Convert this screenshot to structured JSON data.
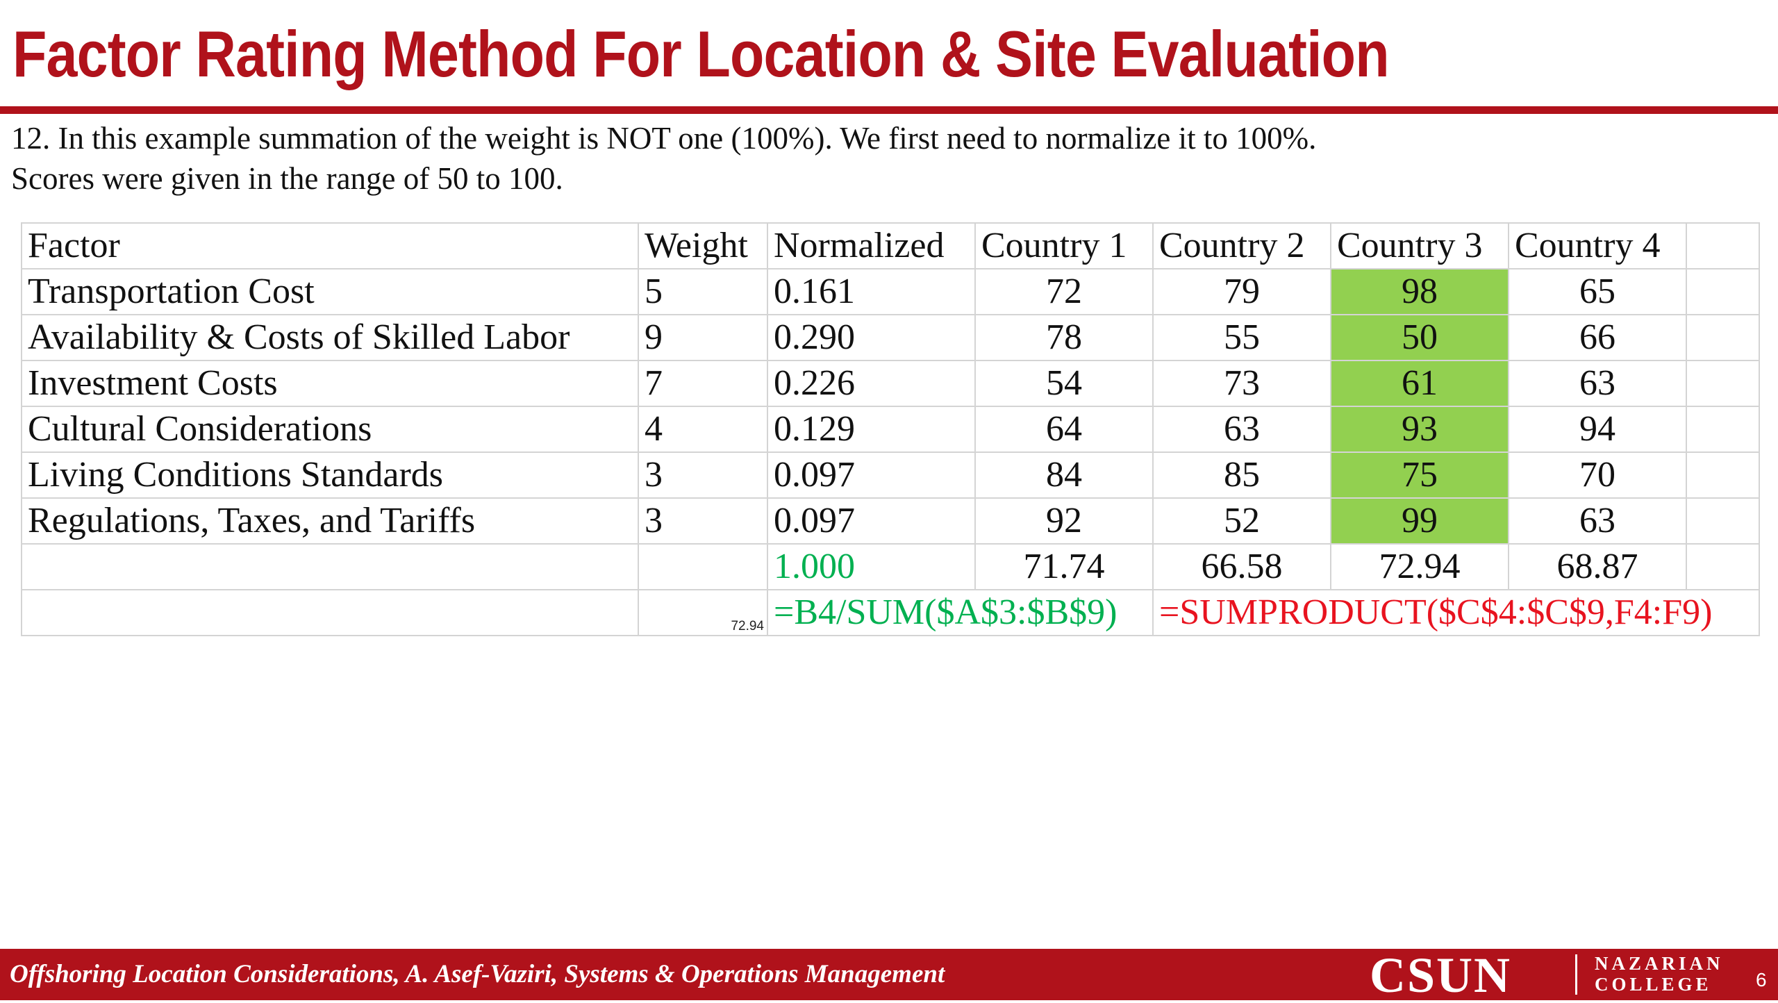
{
  "slide": {
    "title": "Factor Rating Method For Location & Site Evaluation",
    "intro_line1": "12. In this example summation of the weight is NOT one (100%). We first need to normalize it to 100%.",
    "intro_line2": "Scores were given in the range of 50 to 100.",
    "page_number": "6"
  },
  "table": {
    "headers": [
      "Factor",
      "Weight",
      "Normalized",
      "Country 1",
      "Country 2",
      "Country 3",
      "Country 4",
      ""
    ],
    "rows": [
      {
        "factor": "Transportation Cost",
        "weight": "5",
        "normalized": "0.161",
        "c1": "72",
        "c2": "79",
        "c3": "98",
        "c4": "65"
      },
      {
        "factor": "Availability & Costs of Skilled Labor",
        "weight": "9",
        "normalized": "0.290",
        "c1": "78",
        "c2": "55",
        "c3": "50",
        "c4": "66"
      },
      {
        "factor": "Investment Costs",
        "weight": "7",
        "normalized": "0.226",
        "c1": "54",
        "c2": "73",
        "c3": "61",
        "c4": "63"
      },
      {
        "factor": "Cultural Considerations",
        "weight": "4",
        "normalized": "0.129",
        "c1": "64",
        "c2": "63",
        "c3": "93",
        "c4": "94"
      },
      {
        "factor": "Living Conditions Standards",
        "weight": "3",
        "normalized": "0.097",
        "c1": "84",
        "c2": "85",
        "c3": "75",
        "c4": "70"
      },
      {
        "factor": "Regulations, Taxes, and Tariffs",
        "weight": "3",
        "normalized": "0.097",
        "c1": "92",
        "c2": "52",
        "c3": "99",
        "c4": "63"
      }
    ],
    "totals": {
      "normalized": "1.000",
      "c1": "71.74",
      "c2": "66.58",
      "c3": "72.94",
      "c4": "68.87"
    },
    "formula_row": {
      "small_value": "72.94",
      "normalize_formula": "=B4/SUM($A$3:$B$9)",
      "sumproduct_formula": "=SUMPRODUCT($C$4:$C$9,F4:F9)"
    },
    "highlight_color": "#92d050"
  },
  "footer": {
    "text": "Offshoring Location Considerations, A. Asef-Vaziri, Systems & Operations Management",
    "logo_main": "CSUN",
    "logo_line1": "NAZARIAN",
    "logo_line2": "COLLEGE"
  },
  "colors": {
    "brand_red": "#b0121b",
    "formula_green": "#00b050",
    "formula_red": "#e8131f"
  }
}
